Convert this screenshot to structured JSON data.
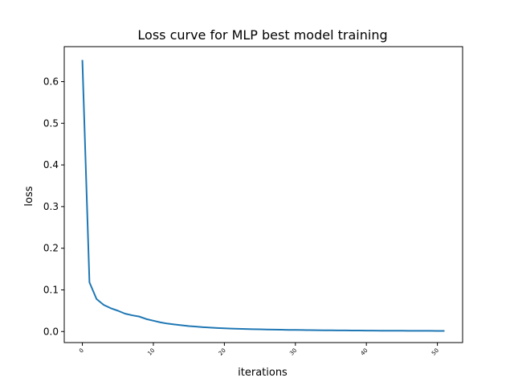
{
  "chart_data": {
    "type": "line",
    "title": "Loss curve for MLP best model training",
    "xlabel": "iterations",
    "ylabel": "loss",
    "xlim": [
      -2.55,
      53.55
    ],
    "ylim": [
      -0.0265,
      0.684
    ],
    "xticks": [
      0,
      10,
      20,
      30,
      40,
      50
    ],
    "xtick_labels": [
      "0",
      "10",
      "20",
      "30",
      "40",
      "50"
    ],
    "yticks": [
      0.0,
      0.1,
      0.2,
      0.3,
      0.4,
      0.5,
      0.6
    ],
    "ytick_labels": [
      "0.0",
      "0.1",
      "0.2",
      "0.3",
      "0.4",
      "0.5",
      "0.6"
    ],
    "grid": false,
    "series": [
      {
        "color": "#1f77b4",
        "x": [
          0,
          1,
          2,
          3,
          4,
          5,
          6,
          7,
          8,
          9,
          10,
          11,
          12,
          13,
          14,
          15,
          16,
          17,
          18,
          19,
          20,
          21,
          22,
          23,
          24,
          25,
          26,
          27,
          28,
          29,
          30,
          31,
          32,
          33,
          34,
          35,
          36,
          37,
          38,
          39,
          40,
          41,
          42,
          43,
          44,
          45,
          46,
          47,
          48,
          49,
          50,
          51
        ],
        "y": [
          0.652,
          0.118,
          0.078,
          0.064,
          0.056,
          0.05,
          0.043,
          0.039,
          0.036,
          0.03,
          0.026,
          0.022,
          0.019,
          0.017,
          0.015,
          0.013,
          0.0118,
          0.0105,
          0.0094,
          0.0085,
          0.0077,
          0.0071,
          0.0066,
          0.0061,
          0.0057,
          0.0053,
          0.0049,
          0.0046,
          0.0043,
          0.004,
          0.0038,
          0.0036,
          0.0034,
          0.0032,
          0.003,
          0.0029,
          0.0027,
          0.0026,
          0.0025,
          0.0024,
          0.0023,
          0.0022,
          0.0021,
          0.002,
          0.0019,
          0.0019,
          0.0018,
          0.0018,
          0.0017,
          0.0017,
          0.0016,
          0.0016
        ]
      }
    ]
  }
}
